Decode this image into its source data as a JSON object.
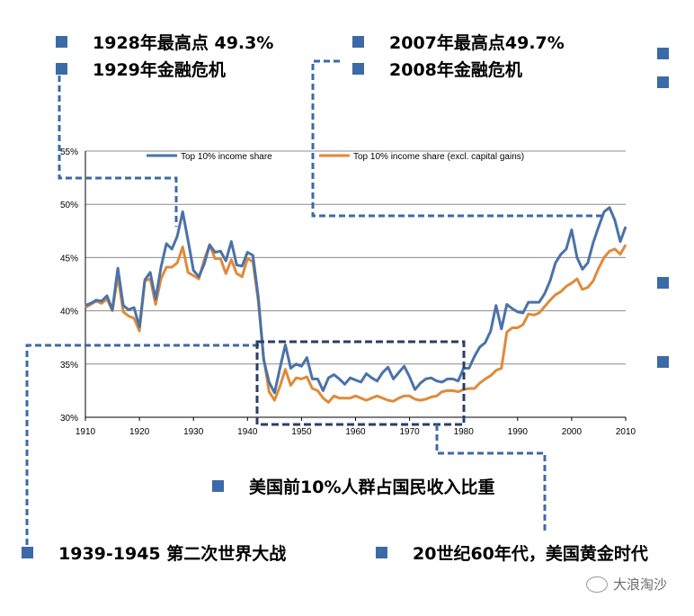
{
  "annotations": {
    "peak_1928": "1928年最高点 49.3%",
    "crisis_1929": "1929年金融危机",
    "peak_2007": "2007年最高点49.7%",
    "crisis_2008": "2008年金融危机",
    "chart_caption": "美国前10%人群占国民收入比重",
    "ww2": "1939-1945 第二次世界大战",
    "golden_age": "20世纪60年代，美国黄金时代"
  },
  "watermark": "大浪淘沙",
  "colors": {
    "blue": "#4a72a8",
    "orange": "#e08a3a",
    "bullet": "#3c6aa6",
    "dash": "#3c6aa6"
  },
  "chart_data": {
    "type": "line",
    "title": "",
    "xlabel": "",
    "ylabel": "",
    "xlim": [
      1910,
      2010
    ],
    "ylim": [
      30,
      55
    ],
    "x_ticks": [
      "1910",
      "1920",
      "1930",
      "1940",
      "1950",
      "1960",
      "1970",
      "1980",
      "1990",
      "2000",
      "2010"
    ],
    "y_ticks": [
      "30%",
      "35%",
      "40%",
      "45%",
      "50%",
      "55%"
    ],
    "legend_position": "top",
    "series": [
      {
        "name": "Top 10% income share",
        "color": "#4a72a8",
        "x": [
          1910,
          1911,
          1912,
          1913,
          1914,
          1915,
          1916,
          1917,
          1918,
          1919,
          1920,
          1921,
          1922,
          1923,
          1924,
          1925,
          1926,
          1927,
          1928,
          1929,
          1930,
          1931,
          1932,
          1933,
          1934,
          1935,
          1936,
          1937,
          1938,
          1939,
          1940,
          1941,
          1942,
          1943,
          1944,
          1945,
          1946,
          1947,
          1948,
          1949,
          1950,
          1951,
          1952,
          1953,
          1954,
          1955,
          1956,
          1957,
          1958,
          1959,
          1960,
          1961,
          1962,
          1963,
          1964,
          1965,
          1966,
          1967,
          1968,
          1969,
          1970,
          1971,
          1972,
          1973,
          1974,
          1975,
          1976,
          1977,
          1978,
          1979,
          1980,
          1981,
          1982,
          1983,
          1984,
          1985,
          1986,
          1987,
          1988,
          1989,
          1990,
          1991,
          1992,
          1993,
          1994,
          1995,
          1996,
          1997,
          1998,
          1999,
          2000,
          2001,
          2002,
          2003,
          2004,
          2005,
          2006,
          2007,
          2008,
          2009,
          2010
        ],
        "values": [
          40.5,
          40.7,
          41.0,
          40.9,
          41.4,
          40.1,
          44.0,
          40.5,
          40.1,
          40.3,
          38.5,
          42.9,
          43.6,
          41.1,
          44.1,
          46.3,
          45.8,
          47.0,
          49.3,
          46.6,
          43.8,
          43.2,
          44.4,
          46.2,
          45.5,
          45.6,
          44.7,
          46.5,
          44.3,
          44.2,
          45.5,
          45.2,
          41.3,
          35.4,
          33.3,
          32.3,
          34.6,
          36.8,
          34.6,
          35.0,
          34.8,
          35.6,
          33.6,
          33.6,
          32.5,
          33.7,
          34.0,
          33.6,
          33.1,
          33.7,
          33.5,
          33.3,
          34.1,
          33.7,
          33.4,
          34.2,
          34.7,
          33.6,
          34.2,
          34.8,
          33.8,
          32.6,
          33.2,
          33.6,
          33.7,
          33.4,
          33.3,
          33.6,
          33.6,
          33.4,
          34.6,
          34.6,
          35.7,
          36.6,
          37.0,
          38.1,
          40.5,
          38.3,
          40.6,
          40.2,
          39.9,
          39.8,
          40.8,
          40.8,
          40.8,
          41.6,
          42.8,
          44.5,
          45.3,
          45.8,
          47.6,
          45.0,
          43.9,
          44.5,
          46.4,
          47.9,
          49.3,
          49.7,
          48.5,
          46.5,
          47.9
        ]
      },
      {
        "name": "Top 10% income share (excl. capital gains)",
        "color": "#e08a3a",
        "x": [
          1910,
          1911,
          1912,
          1913,
          1914,
          1915,
          1916,
          1917,
          1918,
          1919,
          1920,
          1921,
          1922,
          1923,
          1924,
          1925,
          1926,
          1927,
          1928,
          1929,
          1930,
          1931,
          1932,
          1933,
          1934,
          1935,
          1936,
          1937,
          1938,
          1939,
          1940,
          1941,
          1942,
          1943,
          1944,
          1945,
          1946,
          1947,
          1948,
          1949,
          1950,
          1951,
          1952,
          1953,
          1954,
          1955,
          1956,
          1957,
          1958,
          1959,
          1960,
          1961,
          1962,
          1963,
          1964,
          1965,
          1966,
          1967,
          1968,
          1969,
          1970,
          1971,
          1972,
          1973,
          1974,
          1975,
          1976,
          1977,
          1978,
          1979,
          1980,
          1981,
          1982,
          1983,
          1984,
          1985,
          1986,
          1987,
          1988,
          1989,
          1990,
          1991,
          1992,
          1993,
          1994,
          1995,
          1996,
          1997,
          1998,
          1999,
          2000,
          2001,
          2002,
          2003,
          2004,
          2005,
          2006,
          2007,
          2008,
          2009,
          2010
        ],
        "values": [
          40.3,
          40.6,
          40.9,
          40.7,
          41.1,
          40.0,
          43.3,
          39.9,
          39.5,
          39.3,
          38.1,
          42.8,
          43.0,
          40.6,
          43.0,
          44.1,
          44.1,
          44.5,
          46.0,
          43.6,
          43.3,
          43.0,
          44.8,
          46.2,
          44.9,
          44.9,
          43.5,
          44.8,
          43.5,
          43.2,
          44.9,
          44.6,
          40.9,
          35.6,
          32.4,
          31.6,
          32.9,
          34.5,
          33.0,
          33.7,
          33.6,
          33.8,
          32.7,
          32.5,
          31.8,
          31.4,
          32.0,
          31.8,
          31.8,
          31.8,
          32.0,
          31.8,
          31.6,
          31.8,
          32.0,
          31.8,
          31.6,
          31.5,
          31.8,
          32.0,
          32.0,
          31.7,
          31.6,
          31.7,
          31.9,
          32.0,
          32.4,
          32.5,
          32.5,
          32.4,
          32.6,
          32.7,
          32.7,
          33.2,
          33.6,
          33.9,
          34.4,
          34.6,
          38.0,
          38.4,
          38.4,
          38.7,
          39.7,
          39.6,
          39.8,
          40.4,
          41.0,
          41.5,
          41.8,
          42.3,
          42.6,
          43.0,
          42.0,
          42.2,
          42.8,
          44.0,
          45.0,
          45.6,
          45.8,
          45.3,
          46.2
        ]
      }
    ]
  }
}
